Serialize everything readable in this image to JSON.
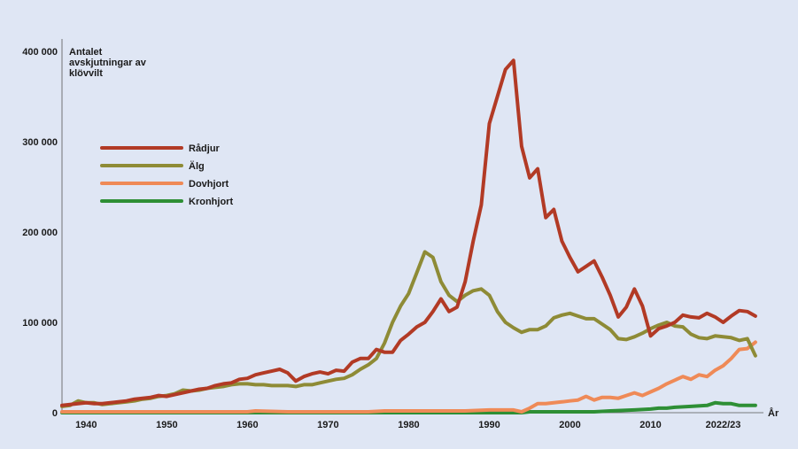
{
  "chart_data": {
    "type": "line",
    "ylabel": "Antalet avskjutningar av klövvilt",
    "xlabel": "År",
    "ylim": [
      0,
      400000
    ],
    "xlim": [
      1937,
      2024
    ],
    "yticks": [
      {
        "value": 0,
        "label": "0"
      },
      {
        "value": 100000,
        "label": "100 000"
      },
      {
        "value": 200000,
        "label": "200 000"
      },
      {
        "value": 300000,
        "label": "300 000"
      },
      {
        "value": 400000,
        "label": "400 000"
      }
    ],
    "xticks": [
      {
        "value": 1940,
        "label": "1940"
      },
      {
        "value": 1950,
        "label": "1950"
      },
      {
        "value": 1960,
        "label": "1960"
      },
      {
        "value": 1970,
        "label": "1970"
      },
      {
        "value": 1980,
        "label": "1980"
      },
      {
        "value": 1990,
        "label": "1990"
      },
      {
        "value": 2000,
        "label": "2000"
      },
      {
        "value": 2010,
        "label": "2010"
      },
      {
        "value": 2019,
        "label": "2022/23"
      }
    ],
    "grid": false,
    "legend_position": "upper-left",
    "series": [
      {
        "name": "Rådjur",
        "color": "#b23a25",
        "x": [
          1937,
          1938,
          1939,
          1940,
          1941,
          1942,
          1943,
          1944,
          1945,
          1946,
          1947,
          1948,
          1949,
          1950,
          1951,
          1952,
          1953,
          1954,
          1955,
          1956,
          1957,
          1958,
          1959,
          1960,
          1961,
          1962,
          1963,
          1964,
          1965,
          1966,
          1967,
          1968,
          1969,
          1970,
          1971,
          1972,
          1973,
          1974,
          1975,
          1976,
          1977,
          1978,
          1979,
          1980,
          1981,
          1982,
          1983,
          1984,
          1985,
          1986,
          1987,
          1988,
          1989,
          1990,
          1991,
          1992,
          1993,
          1994,
          1995,
          1996,
          1997,
          1998,
          1999,
          2000,
          2001,
          2002,
          2003,
          2004,
          2005,
          2006,
          2007,
          2008,
          2009,
          2010,
          2011,
          2012,
          2013,
          2014,
          2015,
          2016,
          2017,
          2018,
          2019,
          2020,
          2021,
          2022,
          2023
        ],
        "values": [
          8000,
          9000,
          10000,
          11000,
          10000,
          10000,
          11000,
          12000,
          13000,
          15000,
          16000,
          17000,
          19000,
          18000,
          20000,
          22000,
          24000,
          26000,
          27000,
          30000,
          32000,
          33000,
          37000,
          38000,
          42000,
          44000,
          46000,
          48000,
          44000,
          35000,
          40000,
          43000,
          45000,
          43000,
          47000,
          46000,
          56000,
          60000,
          60000,
          70000,
          67000,
          67000,
          80000,
          87000,
          95000,
          100000,
          112000,
          126000,
          112000,
          117000,
          145000,
          190000,
          230000,
          320000,
          350000,
          380000,
          390000,
          295000,
          260000,
          270000,
          216000,
          225000,
          190000,
          172000,
          156000,
          162000,
          168000,
          150000,
          130000,
          106000,
          117000,
          137000,
          118000,
          85000,
          93000,
          96000,
          100000,
          108000,
          106000,
          105000,
          110000,
          106000,
          100000,
          107000,
          113000,
          112000,
          107000
        ]
      },
      {
        "name": "Älg",
        "color": "#8e8b36",
        "x": [
          1937,
          1938,
          1939,
          1940,
          1941,
          1942,
          1943,
          1944,
          1945,
          1946,
          1947,
          1948,
          1949,
          1950,
          1951,
          1952,
          1953,
          1954,
          1955,
          1956,
          1957,
          1958,
          1959,
          1960,
          1961,
          1962,
          1963,
          1964,
          1965,
          1966,
          1967,
          1968,
          1969,
          1970,
          1971,
          1972,
          1973,
          1974,
          1975,
          1976,
          1977,
          1978,
          1979,
          1980,
          1981,
          1982,
          1983,
          1984,
          1985,
          1986,
          1987,
          1988,
          1989,
          1990,
          1991,
          1992,
          1993,
          1994,
          1995,
          1996,
          1997,
          1998,
          1999,
          2000,
          2001,
          2002,
          2003,
          2004,
          2005,
          2006,
          2007,
          2008,
          2009,
          2010,
          2011,
          2012,
          2013,
          2014,
          2015,
          2016,
          2017,
          2018,
          2019,
          2020,
          2021,
          2022,
          2023
        ],
        "values": [
          7000,
          8000,
          13000,
          11000,
          11000,
          9000,
          10000,
          11000,
          12000,
          13000,
          15000,
          16000,
          18000,
          19000,
          21000,
          25000,
          24000,
          25000,
          27000,
          28000,
          29000,
          31000,
          32000,
          32000,
          31000,
          31000,
          30000,
          30000,
          30000,
          29000,
          31000,
          31000,
          33000,
          35000,
          37000,
          38000,
          42000,
          48000,
          53000,
          60000,
          77000,
          100000,
          118000,
          132000,
          155000,
          178000,
          172000,
          145000,
          130000,
          123000,
          130000,
          135000,
          137000,
          130000,
          112000,
          100000,
          94000,
          89000,
          92000,
          92000,
          96000,
          105000,
          108000,
          110000,
          107000,
          104000,
          104000,
          98000,
          92000,
          82000,
          81000,
          84000,
          88000,
          93000,
          97000,
          100000,
          96000,
          95000,
          87000,
          83000,
          82000,
          85000,
          84000,
          83000,
          80000,
          82000,
          63000
        ]
      },
      {
        "name": "Dovhjort",
        "color": "#ef8a57",
        "x": [
          1937,
          1940,
          1945,
          1950,
          1955,
          1960,
          1961,
          1965,
          1970,
          1975,
          1977,
          1980,
          1985,
          1987,
          1990,
          1992,
          1993,
          1994,
          1995,
          1996,
          1997,
          1998,
          1999,
          2000,
          2001,
          2002,
          2003,
          2004,
          2005,
          2006,
          2007,
          2008,
          2009,
          2010,
          2011,
          2012,
          2013,
          2014,
          2015,
          2016,
          2017,
          2018,
          2019,
          2020,
          2021,
          2022,
          2023
        ],
        "values": [
          1000,
          1000,
          1000,
          1000,
          1000,
          1000,
          2000,
          1000,
          1000,
          1000,
          2000,
          2000,
          2000,
          2000,
          3000,
          3000,
          3000,
          1000,
          5000,
          10000,
          10000,
          11000,
          12000,
          13000,
          14000,
          18000,
          14000,
          17000,
          17000,
          16000,
          19000,
          22000,
          19000,
          23000,
          27000,
          32000,
          36000,
          40000,
          37000,
          42000,
          40000,
          47000,
          52000,
          60000,
          70000,
          71000,
          78000
        ]
      },
      {
        "name": "Kronhjort",
        "color": "#2e8f35",
        "x": [
          1937,
          1950,
          1960,
          1970,
          1980,
          1990,
          1994,
          1995,
          1996,
          2000,
          2003,
          2005,
          2008,
          2010,
          2011,
          2012,
          2013,
          2015,
          2017,
          2018,
          2019,
          2020,
          2021,
          2022,
          2023
        ],
        "values": [
          0,
          0,
          0,
          0,
          0,
          0,
          0,
          1000,
          1000,
          1000,
          1000,
          2000,
          3000,
          4000,
          5000,
          5000,
          6000,
          7000,
          8000,
          11000,
          10000,
          10000,
          8000,
          8000,
          8000
        ]
      }
    ]
  }
}
